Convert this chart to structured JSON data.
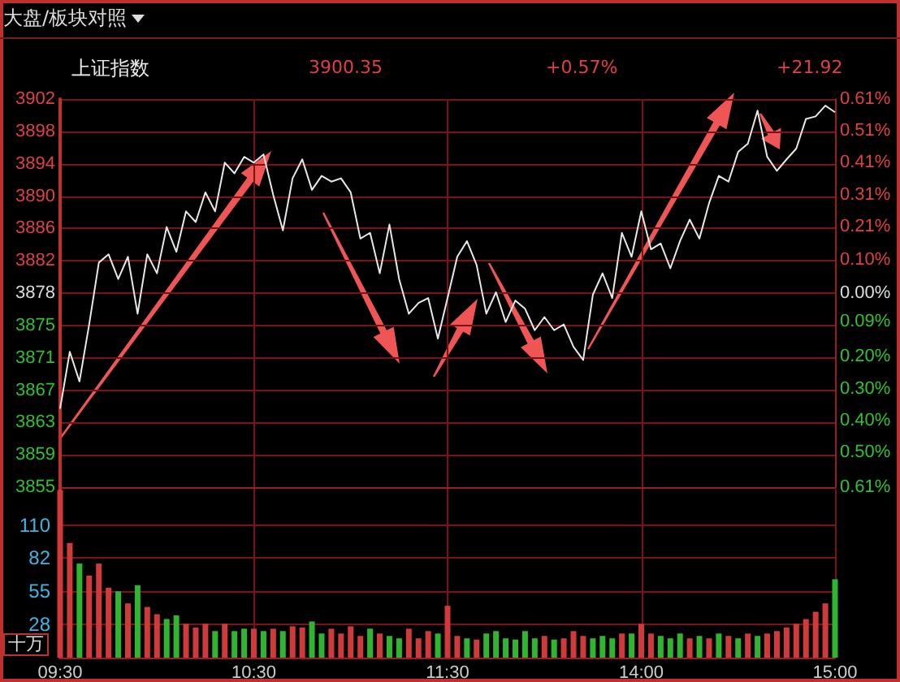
{
  "chart_data": [
    {
      "type": "line",
      "title": "大盘/板块对照",
      "subtitle": "上证指数",
      "annotations": [
        "3900.35",
        "+0.57%",
        "+21.92"
      ],
      "categories": [
        null,
        null,
        null,
        null,
        null,
        null,
        null,
        null,
        null,
        null,
        null,
        null,
        null,
        null,
        null,
        null,
        null,
        null,
        null,
        null,
        null,
        null,
        null,
        null,
        null,
        null,
        null,
        null,
        null,
        null,
        null,
        null,
        null,
        null,
        null,
        null,
        null,
        null,
        null,
        null,
        null,
        null,
        null,
        null,
        null,
        null,
        null,
        null,
        null,
        null,
        null,
        null,
        null,
        null,
        null,
        null,
        null,
        null,
        null,
        null,
        null,
        null,
        null,
        null,
        null,
        null,
        null,
        null,
        null,
        null,
        null,
        null,
        null,
        null,
        null,
        null,
        null,
        null,
        null,
        null,
        null
      ],
      "series": [
        {
          "color": "#e8e8e8",
          "values": [
            3864.5,
            3871.4,
            3867.8,
            3874.7,
            3882.2,
            3883.2,
            3880.2,
            3882.9,
            3876,
            3883.2,
            3880.9,
            3886.5,
            3883.5,
            3888.4,
            3887.1,
            3890.7,
            3888.4,
            3894.3,
            3893,
            3895,
            3894.3,
            3895.3,
            3890.4,
            3886.1,
            3892.4,
            3894.7,
            3891,
            3892.7,
            3892,
            3892.4,
            3890.7,
            3885.1,
            3885.8,
            3880.9,
            3886.8,
            3880.2,
            3876,
            3877.3,
            3877.9,
            3873,
            3877.9,
            3882.9,
            3884.8,
            3881.9,
            3876,
            3878.6,
            3875,
            3877.6,
            3876.6,
            3874,
            3875.6,
            3874,
            3874.7,
            3872,
            3870.4,
            3878.3,
            3880.9,
            3877.9,
            3885.8,
            3882.9,
            3888.4,
            3883.8,
            3884.5,
            3881.5,
            3884.8,
            3887.4,
            3885.1,
            3889.4,
            3892.7,
            3892,
            3895.6,
            3896.6,
            3900.6,
            3895,
            3893.3,
            3894.7,
            3896,
            3899.6,
            3899.9,
            3901.2,
            3900.4
          ]
        }
      ],
      "ylim": [
        3855,
        3902
      ],
      "yticks": [
        {
          "value": 3855,
          "label": "3855"
        },
        {
          "value": 3858.92,
          "label": "3859"
        },
        {
          "value": 3862.83,
          "label": "3863"
        },
        {
          "value": 3866.75,
          "label": "3867"
        },
        {
          "value": 3870.67,
          "label": "3871"
        },
        {
          "value": 3874.58,
          "label": "3875"
        },
        {
          "value": 3878.5,
          "label": "3878"
        },
        {
          "value": 3882.42,
          "label": "3882"
        },
        {
          "value": 3886.33,
          "label": "3886"
        },
        {
          "value": 3890.25,
          "label": "3890"
        },
        {
          "value": 3894.17,
          "label": "3894"
        },
        {
          "value": 3898.08,
          "label": "3898"
        },
        {
          "value": 3902,
          "label": "3902"
        }
      ],
      "y2lim": [
        -0.61,
        0.61
      ],
      "y2ticks": [
        {
          "value": -0.61,
          "label": "0.61%"
        },
        {
          "value": -0.5,
          "label": "0.50%"
        },
        {
          "value": -0.4,
          "label": "0.40%"
        },
        {
          "value": -0.3,
          "label": "0.30%"
        },
        {
          "value": -0.2,
          "label": "0.20%"
        },
        {
          "value": -0.09,
          "label": "0.09%"
        },
        {
          "value": 0,
          "label": "0.00%"
        },
        {
          "value": 0.105,
          "label": "0.10%"
        },
        {
          "value": 0.21,
          "label": "0.21%"
        },
        {
          "value": 0.31,
          "label": "0.31%"
        },
        {
          "value": 0.41,
          "label": "0.41%"
        },
        {
          "value": 0.51,
          "label": "0.51%"
        },
        {
          "value": 0.61,
          "label": "0.61%"
        }
      ],
      "tick_labels": "y",
      "grid": true,
      "marker": "none",
      "line_style": "solid"
    },
    {
      "type": "bar",
      "ylabel": "十万",
      "categories": [
        "09:30",
        null,
        null,
        null,
        null,
        null,
        null,
        null,
        null,
        null,
        null,
        null,
        null,
        null,
        null,
        null,
        null,
        null,
        null,
        null,
        "10:30",
        null,
        null,
        null,
        null,
        null,
        null,
        null,
        null,
        null,
        null,
        null,
        null,
        null,
        null,
        null,
        null,
        null,
        null,
        null,
        "11:30",
        null,
        null,
        null,
        null,
        null,
        null,
        null,
        null,
        null,
        null,
        null,
        null,
        null,
        null,
        null,
        null,
        null,
        null,
        null,
        "14:00",
        null,
        null,
        null,
        null,
        null,
        null,
        null,
        null,
        null,
        null,
        null,
        null,
        null,
        null,
        null,
        null,
        null,
        null,
        null,
        "15:00"
      ],
      "values": [
        139,
        95,
        78,
        68,
        78,
        58,
        55,
        45,
        60,
        42,
        36,
        32,
        35,
        28,
        25,
        28,
        22,
        28,
        22,
        24,
        24,
        22,
        24,
        22,
        26,
        25,
        30,
        20,
        24,
        20,
        26,
        18,
        24,
        20,
        18,
        16,
        24,
        16,
        22,
        20,
        43,
        18,
        16,
        15,
        20,
        22,
        16,
        15,
        22,
        16,
        18,
        15,
        16,
        22,
        18,
        16,
        18,
        16,
        20,
        20,
        28,
        20,
        18,
        16,
        20,
        16,
        18,
        16,
        20,
        18,
        16,
        20,
        18,
        20,
        22,
        25,
        28,
        32,
        38,
        45,
        65
      ],
      "colors": [
        "#d03a3a",
        "#d03a3a",
        "#2fb52f",
        "#d03a3a",
        "#d03a3a",
        "#d03a3a",
        "#2fb52f",
        "#d03a3a",
        "#2fb52f",
        "#d03a3a",
        "#d03a3a",
        "#2fb52f",
        "#2fb52f",
        "#d03a3a",
        "#d03a3a",
        "#d03a3a",
        "#2fb52f",
        "#d03a3a",
        "#2fb52f",
        "#2fb52f",
        "#d03a3a",
        "#2fb52f",
        "#d03a3a",
        "#2fb52f",
        "#d03a3a",
        "#d03a3a",
        "#2fb52f",
        "#2fb52f",
        "#d03a3a",
        "#d03a3a",
        "#d03a3a",
        "#d03a3a",
        "#2fb52f",
        "#d03a3a",
        "#2fb52f",
        "#2fb52f",
        "#d03a3a",
        "#d03a3a",
        "#d03a3a",
        "#2fb52f",
        "#d03a3a",
        "#d03a3a",
        "#2fb52f",
        "#d03a3a",
        "#2fb52f",
        "#2fb52f",
        "#2fb52f",
        "#2fb52f",
        "#2fb52f",
        "#2fb52f",
        "#d03a3a",
        "#2fb52f",
        "#d03a3a",
        "#d03a3a",
        "#d03a3a",
        "#2fb52f",
        "#2fb52f",
        "#2fb52f",
        "#d03a3a",
        "#2fb52f",
        "#d03a3a",
        "#d03a3a",
        "#2fb52f",
        "#2fb52f",
        "#2fb52f",
        "#d03a3a",
        "#2fb52f",
        "#d03a3a",
        "#2fb52f",
        "#d03a3a",
        "#2fb52f",
        "#d03a3a",
        "#2fb52f",
        "#d03a3a",
        "#d03a3a",
        "#d03a3a",
        "#d03a3a",
        "#d03a3a",
        "#d03a3a",
        "#d03a3a",
        "#2fb52f"
      ],
      "ylim": [
        0,
        140
      ],
      "yticks": [
        {
          "value": 27.5,
          "label": "28"
        },
        {
          "value": 55,
          "label": "55"
        },
        {
          "value": 82.5,
          "label": "82"
        },
        {
          "value": 110,
          "label": "110"
        }
      ],
      "grid": true
    }
  ]
}
